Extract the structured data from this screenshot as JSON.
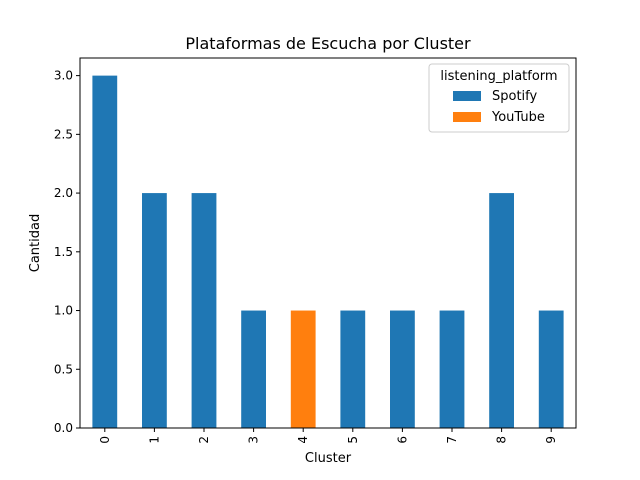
{
  "chart_data": {
    "type": "bar",
    "stacked": true,
    "title": "Plataformas de Escucha por Cluster",
    "xlabel": "Cluster",
    "ylabel": "Cantidad",
    "categories": [
      "0",
      "1",
      "2",
      "3",
      "4",
      "5",
      "6",
      "7",
      "8",
      "9"
    ],
    "series": [
      {
        "name": "Spotify",
        "color": "#1f77b4",
        "values": [
          3,
          2,
          2,
          1,
          0,
          1,
          1,
          1,
          2,
          1
        ]
      },
      {
        "name": "YouTube",
        "color": "#ff7f0e",
        "values": [
          0,
          0,
          0,
          0,
          1,
          0,
          0,
          0,
          0,
          0
        ]
      }
    ],
    "ylim": [
      0,
      3.15
    ],
    "yticks": [
      "0.0",
      "0.5",
      "1.0",
      "1.5",
      "2.0",
      "2.5",
      "3.0"
    ],
    "grid": false,
    "legend": {
      "title": "listening_platform",
      "position": "top-right"
    }
  }
}
